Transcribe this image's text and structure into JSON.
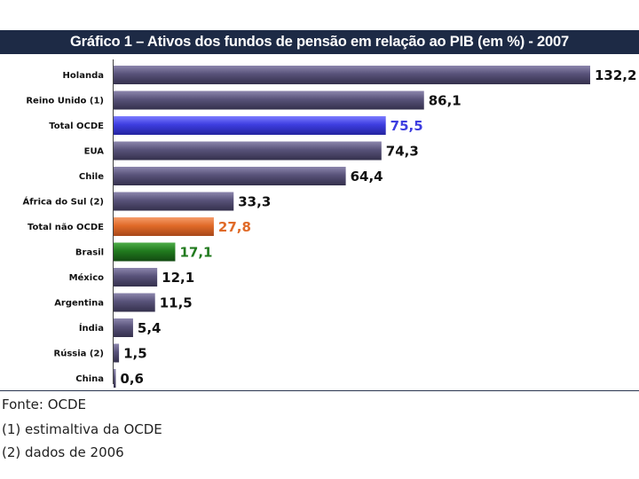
{
  "title": "Gráfico 1 – Ativos dos fundos de pensão em relação ao PIB (em %) - 2007",
  "colors": {
    "title_bg": "#1d2a45",
    "default_bar": "#585279",
    "highlight_blue": "#3d3de0",
    "highlight_orange": "#e06a28",
    "highlight_green": "#217a1e"
  },
  "chart_data": {
    "type": "bar",
    "orientation": "horizontal",
    "title": "Gráfico 1 – Ativos dos fundos de pensão em relação ao PIB (em %) - 2007",
    "xlabel": "",
    "ylabel": "",
    "grid": false,
    "categories": [
      "Holanda",
      "Reino Unido (1)",
      "Total OCDE",
      "EUA",
      "Chile",
      "África do Sul (2)",
      "Total não OCDE",
      "Brasil",
      "México",
      "Argentina",
      "Índia",
      "Rússia (2)",
      "China"
    ],
    "values": [
      132.2,
      86.1,
      75.5,
      74.3,
      64.4,
      33.3,
      27.8,
      17.1,
      12.1,
      11.5,
      5.4,
      1.5,
      0.6
    ],
    "value_labels": [
      "132,2",
      "86,1",
      "75,5",
      "74,3",
      "64,4",
      "33,3",
      "27,8",
      "17,1",
      "12,1",
      "11,5",
      "5,4",
      "1,5",
      "0,6"
    ],
    "bar_colors": [
      "#585279",
      "#585279",
      "#3d3de0",
      "#585279",
      "#585279",
      "#585279",
      "#e06a28",
      "#217a1e",
      "#585279",
      "#585279",
      "#585279",
      "#585279",
      "#585279"
    ],
    "label_colors": [
      "#111111",
      "#111111",
      "#3d3de0",
      "#111111",
      "#111111",
      "#111111",
      "#e06a28",
      "#217a1e",
      "#111111",
      "#111111",
      "#111111",
      "#111111",
      "#111111"
    ],
    "xlim": [
      0,
      132.2
    ]
  },
  "notes": {
    "source": "Fonte: OCDE",
    "note1": "(1) estimaltiva da OCDE",
    "note2": "(2) dados de 2006"
  }
}
